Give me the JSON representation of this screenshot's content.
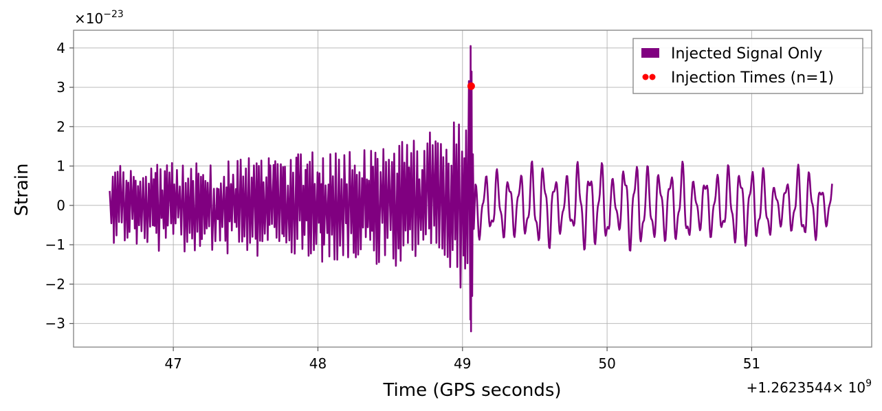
{
  "chart_data": {
    "type": "line",
    "title": "",
    "xlabel": "Time (GPS seconds)",
    "ylabel": "Strain",
    "x_offset_text": "+1.2623544",
    "x_offset_power_base": "× 10",
    "x_offset_power_exp": "9",
    "y_multiplier_base": "×10",
    "y_multiplier_exp": "−23",
    "xlim": [
      46.31,
      51.83
    ],
    "ylim": [
      -3.6,
      4.45
    ],
    "x_ticks": [
      47,
      48,
      49,
      50,
      51
    ],
    "x_tick_labels": [
      "47",
      "48",
      "49",
      "50",
      "51"
    ],
    "y_ticks": [
      -3,
      -2,
      -1,
      0,
      1,
      2,
      3,
      4
    ],
    "y_tick_labels": [
      "−3",
      "−2",
      "−1",
      "0",
      "1",
      "2",
      "3",
      "4"
    ],
    "grid": true,
    "legend_position": "top-right",
    "series": [
      {
        "name": "Injected Signal Only",
        "kind": "line",
        "color": "#800080",
        "x_start": 46.56,
        "x_end": 51.56,
        "merger_time": 49.06,
        "pre_merger_amplitude_envelope": [
          [
            46.56,
            1.05
          ],
          [
            47.0,
            1.1
          ],
          [
            47.5,
            1.2
          ],
          [
            48.0,
            1.4
          ],
          [
            48.5,
            1.6
          ],
          [
            48.8,
            1.9
          ],
          [
            49.0,
            2.6
          ],
          [
            49.055,
            4.05
          ]
        ],
        "post_merger_amplitude_range": [
          0.4,
          0.9
        ]
      },
      {
        "name": "Injection Times (n=1)",
        "kind": "scatter",
        "color": "#ff0000",
        "points": [
          {
            "x": 49.06,
            "y": 3.03
          }
        ]
      }
    ]
  }
}
